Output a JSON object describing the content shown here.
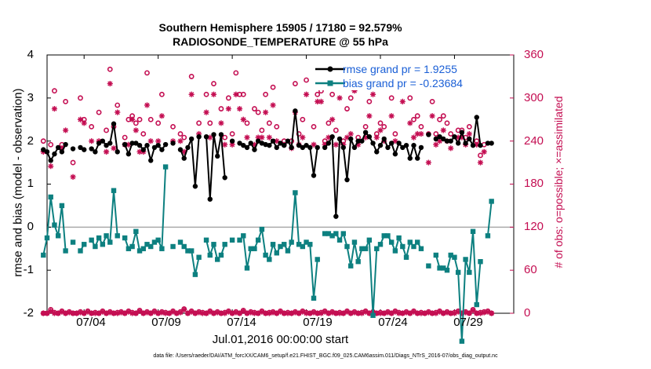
{
  "title": {
    "line1": "Southern Hemisphere 15905 / 17180 = 92.579%",
    "line2": "RADIOSONDE_TEMPERATURE @ 55 hPa"
  },
  "axes": {
    "left_label": "rmse and bias (model - observation)",
    "right_label": "# of obs: o=possible; ×=assimilated",
    "x_label": "Jul.01,2016 00:00:00 start",
    "left_ticks": [
      "4",
      "3",
      "2",
      "1",
      "0",
      "-1",
      "-2"
    ],
    "right_ticks": [
      "360",
      "300",
      "240",
      "180",
      "120",
      "60",
      "0"
    ],
    "x_ticks": [
      "07/04",
      "07/09",
      "07/14",
      "07/19",
      "07/24",
      "07/29"
    ]
  },
  "legend": {
    "rmse": "rmse grand pr = 1.9255",
    "bias": "bias grand pr = -0.23684"
  },
  "footer": "data file: /Users/raeder/DAI/ATM_forcXX/CAM6_setup/f.e21.FHIST_BGC.f09_025.CAM6assim.011/Diags_NTrS_2016-07/obs_diag_output.nc",
  "colors": {
    "rmse": "#000000",
    "bias": "#0d8080",
    "obs": "#c40e52",
    "zero_line": "#aaaaaa"
  },
  "chart_data": {
    "type": "line",
    "x_unit": "days since Jul.01,2016 00:00 (6-hourly)",
    "x_start": 0.25,
    "x_step": 0.25,
    "x_range": [
      0.5,
      32.0
    ],
    "x_tick_values": [
      3,
      8,
      13,
      18,
      23,
      28
    ],
    "left_ylim": [
      -2,
      4
    ],
    "right_ylim": [
      0,
      360
    ],
    "series": [
      {
        "name": "rmse",
        "axis": "left",
        "values": [
          1.8,
          1.75,
          1.55,
          1.7,
          1.85,
          1.75,
          1.92,
          null,
          1.82,
          null,
          1.85,
          1.8,
          null,
          1.82,
          1.75,
          1.95,
          2.0,
          1.9,
          1.95,
          2.4,
          1.75,
          null,
          1.92,
          1.7,
          1.95,
          1.95,
          1.9,
          1.8,
          1.9,
          1.55,
          1.85,
          1.9,
          1.8,
          1.92,
          null,
          1.95,
          null,
          1.8,
          1.6,
          1.85,
          2.05,
          0.95,
          2.1,
          null,
          2.1,
          0.65,
          2.15,
          1.65,
          2.15,
          1.15,
          null,
          2.0,
          null,
          1.95,
          1.9,
          1.85,
          1.95,
          1.8,
          2.0,
          1.95,
          1.92,
          1.9,
          2.0,
          1.85,
          1.95,
          1.9,
          2.0,
          1.85,
          2.7,
          1.9,
          1.85,
          1.9,
          1.85,
          1.2,
          1.85,
          null,
          1.85,
          1.95,
          2.1,
          0.25,
          2.05,
          1.85,
          1.1,
          2.05,
          1.85,
          2.0,
          2.0,
          2.2,
          2.1,
          1.95,
          1.75,
          1.9,
          2.05,
          1.85,
          1.95,
          1.7,
          1.95,
          1.85,
          1.9,
          1.6,
          1.9,
          1.6,
          1.85,
          null,
          2.15,
          null,
          2.05,
          2.1,
          2.05,
          2.0,
          2.0,
          2.1,
          1.95,
          2.2,
          1.95,
          2.05,
          1.9,
          2.55,
          1.9,
          null,
          1.95,
          1.95
        ]
      },
      {
        "name": "bias",
        "axis": "left",
        "values": [
          -0.65,
          -0.25,
          0.7,
          0.05,
          -0.2,
          0.5,
          -0.55,
          null,
          -0.35,
          null,
          -0.55,
          -0.4,
          null,
          -0.3,
          -0.45,
          -0.25,
          -0.4,
          -0.2,
          -0.35,
          0.85,
          -0.2,
          null,
          -0.25,
          -0.5,
          -0.45,
          -0.1,
          -0.55,
          -0.5,
          -0.4,
          -0.45,
          -0.35,
          -0.3,
          -0.5,
          1.4,
          null,
          -0.45,
          null,
          -0.35,
          -0.45,
          -0.55,
          -0.55,
          -1.1,
          -0.7,
          null,
          -0.3,
          -0.65,
          -0.4,
          -0.75,
          -0.65,
          -0.4,
          null,
          -0.3,
          null,
          -0.3,
          -0.2,
          -0.95,
          -0.5,
          -0.5,
          -0.3,
          -0.05,
          -0.65,
          -0.75,
          -0.4,
          -0.6,
          -0.45,
          -0.4,
          -0.55,
          -0.35,
          0.8,
          -0.4,
          -0.45,
          -0.35,
          -0.4,
          -1.65,
          -0.75,
          null,
          -0.15,
          -0.15,
          -0.2,
          -0.15,
          -0.3,
          -0.15,
          -0.45,
          -0.9,
          -0.35,
          -0.8,
          -0.5,
          -0.5,
          -0.3,
          -2.05,
          -0.5,
          -0.4,
          -0.2,
          -0.2,
          -0.35,
          -0.55,
          -0.25,
          -0.45,
          -0.7,
          -0.35,
          -0.45,
          -0.35,
          -0.5,
          null,
          -0.9,
          null,
          -0.65,
          -0.95,
          -0.95,
          -1.0,
          -0.65,
          -0.7,
          -1.05,
          -2.65,
          -0.75,
          -1.05,
          -0.1,
          -1.8,
          -0.8,
          null,
          -0.2,
          0.6
        ]
      },
      {
        "name": "obs possible",
        "axis": "right",
        "marker": "circle",
        "values": [
          240,
          null,
          235,
          310,
          null,
          235,
          295,
          null,
          210,
          null,
          300,
          270,
          null,
          260,
          null,
          280,
          null,
          255,
          340,
          260,
          290,
          null,
          245,
          270,
          275,
          265,
          270,
          250,
          335,
          270,
          null,
          265,
          305,
          null,
          null,
          260,
          null,
          250,
          245,
          null,
          330,
          null,
          265,
          null,
          305,
          265,
          320,
          null,
          285,
          245,
          300,
          250,
          335,
          305,
          305,
          265,
          null,
          285,
          280,
          255,
          305,
          265,
          315,
          260,
          null,
          240,
          null,
          240,
          320,
          250,
          270,
          325,
          null,
          260,
          305,
          310,
          240,
          265,
          305,
          255,
          325,
          240,
          285,
          300,
          330,
          245,
          null,
          260,
          295,
          330,
          250,
          265,
          260,
          null,
          300,
          250,
          null,
          315,
          null,
          300,
          270,
          275,
          260,
          null,
          250,
          295,
          250,
          270,
          275,
          265,
          250,
          null,
          255,
          255,
          245,
          260,
          null,
          240,
          220,
          235,
          null,
          null
        ]
      },
      {
        "name": "obs assimilated",
        "axis": "right",
        "marker": "asterisk",
        "values": [
          225,
          null,
          205,
          285,
          null,
          230,
          255,
          null,
          190,
          null,
          270,
          265,
          null,
          240,
          null,
          240,
          null,
          225,
          320,
          230,
          280,
          null,
          235,
          235,
          270,
          255,
          225,
          225,
          290,
          240,
          null,
          240,
          275,
          null,
          null,
          240,
          null,
          240,
          225,
          null,
          305,
          null,
          250,
          null,
          280,
          245,
          305,
          null,
          265,
          235,
          285,
          235,
          305,
          285,
          270,
          245,
          null,
          235,
          245,
          245,
          280,
          245,
          290,
          240,
          null,
          235,
          null,
          230,
          280,
          235,
          245,
          305,
          null,
          235,
          295,
          295,
          235,
          245,
          270,
          235,
          300,
          235,
          245,
          250,
          310,
          235,
          null,
          245,
          275,
          305,
          245,
          255,
          240,
          null,
          275,
          240,
          null,
          295,
          null,
          265,
          245,
          250,
          250,
          null,
          210,
          275,
          235,
          240,
          255,
          240,
          230,
          null,
          245,
          245,
          235,
          250,
          null,
          235,
          210,
          225,
          null,
          null
        ]
      },
      {
        "name": "obs near zero (possible)",
        "axis": "right",
        "marker": "circle",
        "values": [
          0,
          0,
          5,
          1,
          0,
          3,
          0,
          2,
          0,
          0,
          2,
          0,
          3,
          0,
          1,
          0,
          3,
          0,
          2,
          0,
          1,
          2,
          0,
          3,
          1,
          0,
          4,
          0,
          2,
          0,
          3,
          0,
          2,
          1,
          0,
          3,
          0,
          2,
          6,
          0,
          3,
          0,
          2,
          1,
          0,
          3,
          0,
          2,
          0,
          1,
          3,
          0,
          2,
          0,
          4,
          0,
          2,
          1,
          0,
          3,
          0,
          1,
          2,
          0,
          3,
          0,
          1,
          0,
          2,
          0,
          3,
          1,
          0,
          2,
          0,
          1,
          3,
          0,
          2,
          0,
          1,
          0,
          3,
          0,
          2,
          0,
          1,
          3,
          0,
          2,
          0,
          1,
          0,
          2,
          0,
          3,
          1,
          0,
          2,
          0,
          3,
          0,
          1,
          0,
          2,
          0,
          1,
          3,
          0,
          2,
          0,
          1,
          3,
          0,
          2,
          0,
          5,
          0,
          1,
          2,
          3,
          0
        ]
      },
      {
        "name": "obs near zero (assimilated)",
        "axis": "right",
        "marker": "asterisk",
        "values": [
          0,
          0,
          3,
          0,
          0,
          2,
          0,
          1,
          0,
          0,
          1,
          0,
          2,
          0,
          0,
          0,
          2,
          0,
          1,
          0,
          0,
          1,
          0,
          2,
          0,
          0,
          3,
          0,
          1,
          0,
          2,
          0,
          1,
          0,
          0,
          2,
          0,
          1,
          5,
          0,
          2,
          0,
          1,
          0,
          0,
          2,
          0,
          1,
          0,
          0,
          2,
          0,
          1,
          0,
          3,
          0,
          1,
          0,
          0,
          2,
          0,
          0,
          1,
          0,
          2,
          0,
          0,
          0,
          1,
          0,
          2,
          0,
          0,
          1,
          0,
          0,
          2,
          0,
          1,
          0,
          0,
          0,
          2,
          0,
          1,
          0,
          0,
          2,
          0,
          1,
          0,
          0,
          0,
          1,
          0,
          2,
          0,
          0,
          1,
          0,
          2,
          0,
          0,
          0,
          1,
          0,
          0,
          2,
          0,
          1,
          0,
          0,
          2,
          0,
          1,
          0,
          4,
          0,
          0,
          1,
          2,
          0
        ]
      }
    ]
  }
}
